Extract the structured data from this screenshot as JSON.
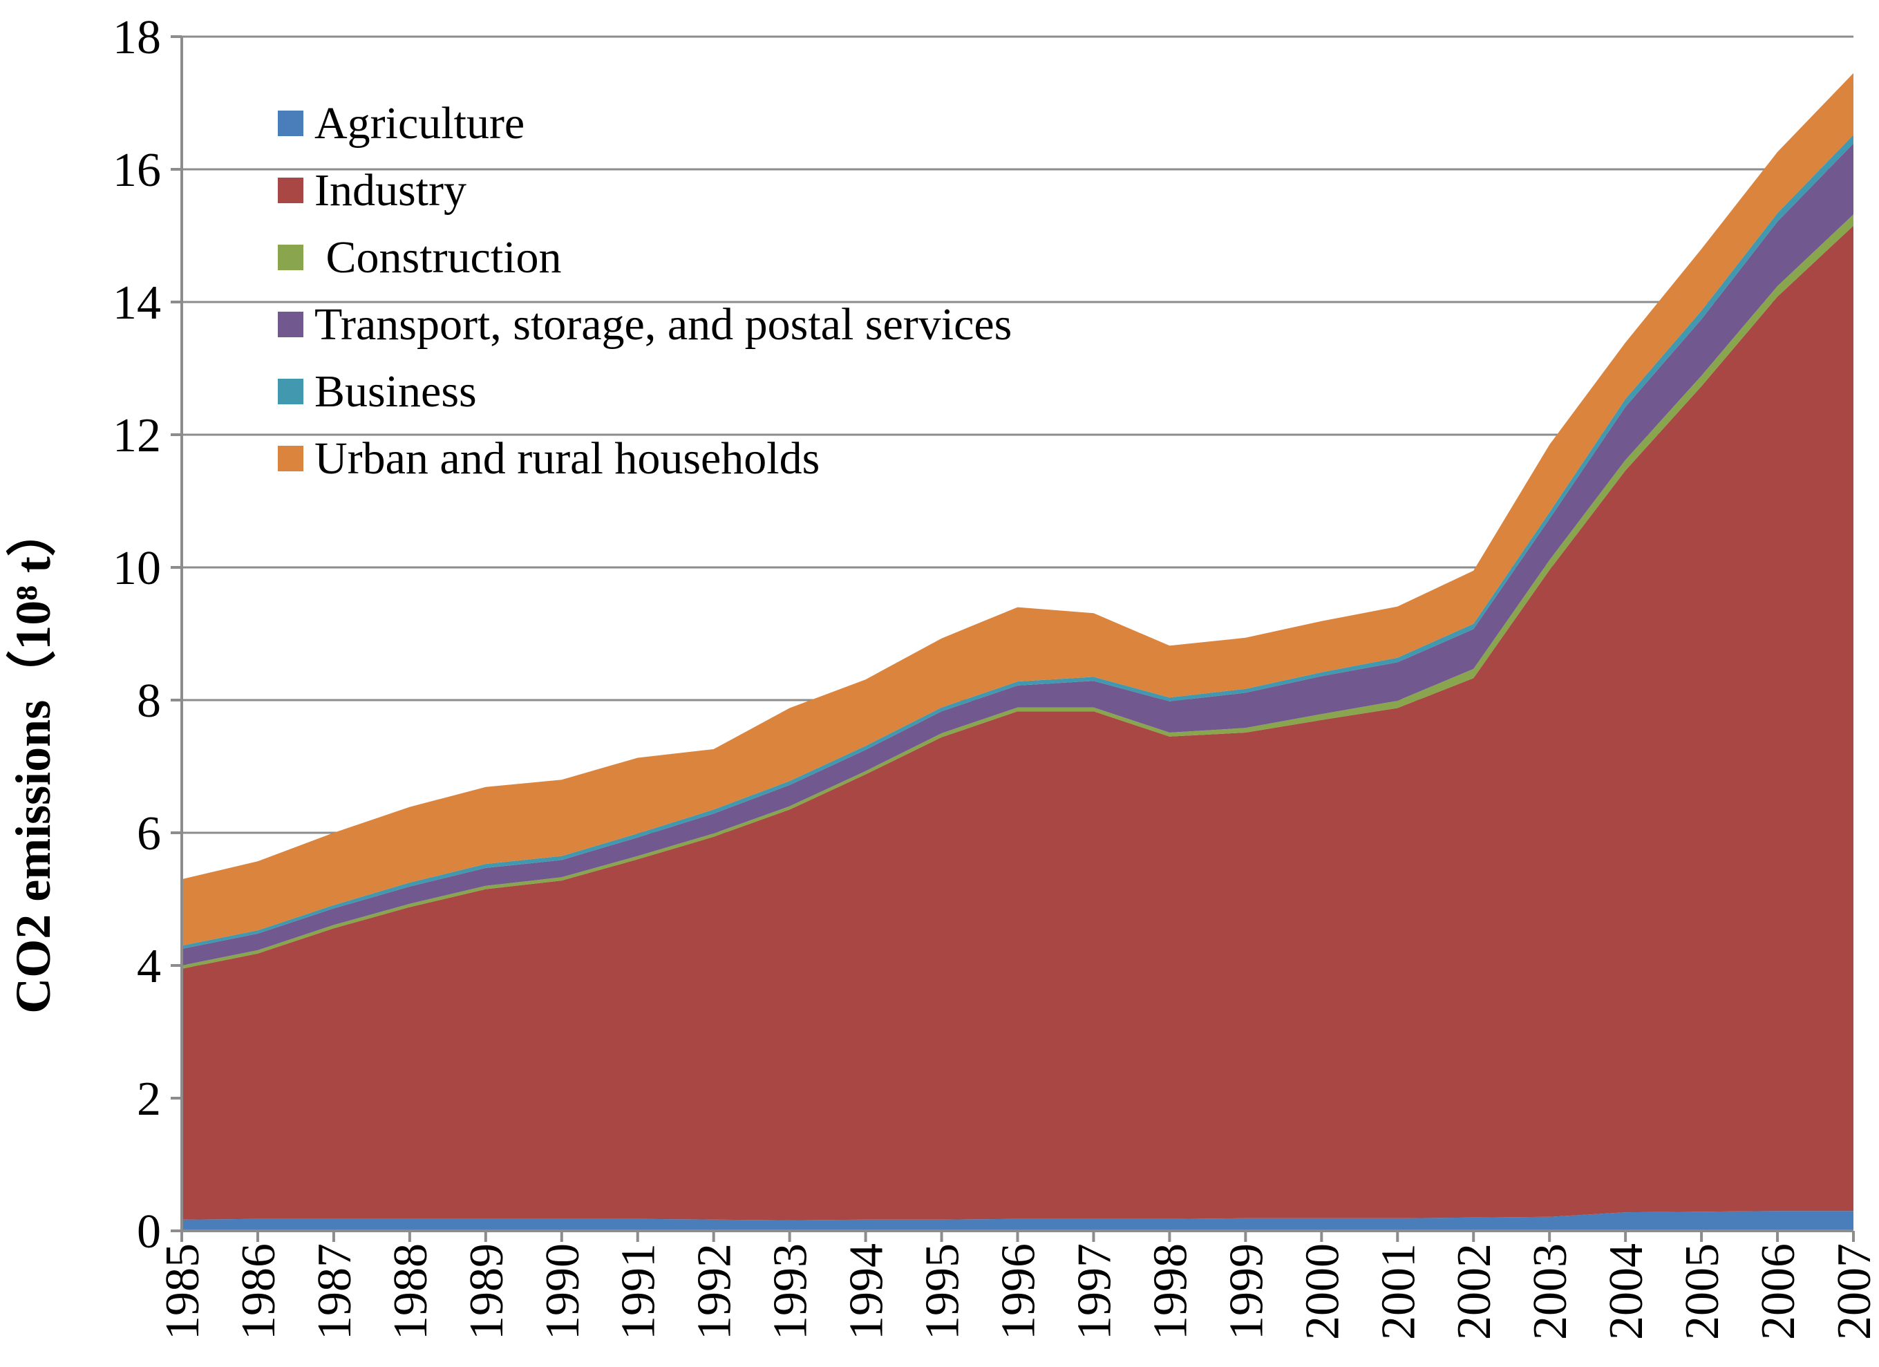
{
  "chart_data": {
    "type": "area",
    "stacked": true,
    "title": "",
    "xlabel": "",
    "ylabel": "CO2 emissions（10⁸ t）",
    "ylim": [
      0,
      18
    ],
    "yticks": [
      "0",
      "2",
      "4",
      "6",
      "8",
      "10",
      "12",
      "14",
      "16",
      "18"
    ],
    "grid": true,
    "legend_position": "top-left",
    "categories": [
      "1985",
      "1986",
      "1987",
      "1988",
      "1989",
      "1990",
      "1991",
      "1992",
      "1993",
      "1994",
      "1995",
      "1996",
      "1997",
      "1998",
      "1999",
      "2000",
      "2001",
      "2002",
      "2003",
      "2004",
      "2005",
      "2006",
      "2007"
    ],
    "series": [
      {
        "name": "Agriculture",
        "legend_label": "Agriculture",
        "color": "#4A7EBB",
        "values": [
          0.17,
          0.18,
          0.18,
          0.18,
          0.18,
          0.18,
          0.18,
          0.17,
          0.16,
          0.17,
          0.17,
          0.18,
          0.18,
          0.18,
          0.19,
          0.19,
          0.19,
          0.2,
          0.21,
          0.28,
          0.29,
          0.3,
          0.3
        ]
      },
      {
        "name": "Industry",
        "legend_label": "Industry",
        "color": "#A84743",
        "values": [
          3.78,
          4.0,
          4.38,
          4.7,
          4.97,
          5.1,
          5.42,
          5.77,
          6.19,
          6.71,
          7.27,
          7.65,
          7.65,
          7.27,
          7.32,
          7.51,
          7.69,
          8.13,
          9.75,
          11.18,
          12.44,
          13.78,
          14.85
        ]
      },
      {
        "name": "Construction",
        "legend_label": " Construction",
        "color": "#89A54E",
        "values": [
          0.05,
          0.05,
          0.05,
          0.05,
          0.05,
          0.05,
          0.05,
          0.05,
          0.05,
          0.05,
          0.06,
          0.06,
          0.06,
          0.06,
          0.07,
          0.09,
          0.11,
          0.14,
          0.15,
          0.16,
          0.16,
          0.16,
          0.17
        ]
      },
      {
        "name": "Transport, storage, and postal services",
        "legend_label": "Transport, storage, and postal services",
        "color": "#71588F",
        "values": [
          0.25,
          0.25,
          0.25,
          0.26,
          0.27,
          0.26,
          0.28,
          0.3,
          0.32,
          0.32,
          0.33,
          0.33,
          0.4,
          0.47,
          0.53,
          0.57,
          0.58,
          0.6,
          0.62,
          0.8,
          0.85,
          0.97,
          1.07
        ]
      },
      {
        "name": "Business",
        "legend_label": "Business",
        "color": "#4298AF",
        "values": [
          0.05,
          0.05,
          0.05,
          0.06,
          0.06,
          0.06,
          0.06,
          0.06,
          0.06,
          0.06,
          0.06,
          0.06,
          0.06,
          0.06,
          0.06,
          0.06,
          0.07,
          0.08,
          0.1,
          0.12,
          0.13,
          0.13,
          0.13
        ]
      },
      {
        "name": "Urban and rural households",
        "legend_label": "Urban and rural households",
        "color": "#DB843D",
        "values": [
          1.0,
          1.04,
          1.09,
          1.14,
          1.16,
          1.15,
          1.14,
          0.91,
          1.1,
          1.0,
          1.04,
          1.12,
          0.96,
          0.78,
          0.77,
          0.77,
          0.77,
          0.8,
          1.02,
          0.85,
          0.93,
          0.92,
          0.93
        ]
      }
    ]
  }
}
